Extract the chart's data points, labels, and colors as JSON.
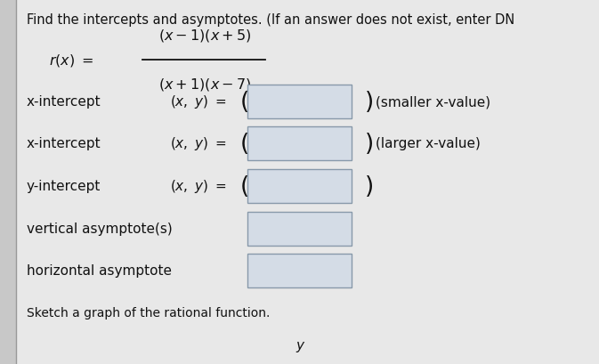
{
  "title": "Find the intercepts and asymptotes. (If an answer does not exist, enter DN",
  "formula_rhs_num": "(x − 1)(x + 5)",
  "formula_rhs_den": "(x + 1)(x − 7)",
  "rows": [
    {
      "label": "x-intercept",
      "show_xy": true,
      "note": "(smaller x-value)"
    },
    {
      "label": "x-intercept",
      "show_xy": true,
      "note": "(larger x-value)"
    },
    {
      "label": "y-intercept",
      "show_xy": true,
      "note": ""
    },
    {
      "label": "vertical asymptote(s)",
      "show_xy": false,
      "note": ""
    },
    {
      "label": "horizontal asymptote",
      "show_xy": false,
      "note": ""
    }
  ],
  "sketch_label": "Sketch a graph of the rational function.",
  "y_label": "y",
  "bg_color": "#c8c8c8",
  "panel_color": "#e8e8e8",
  "box_fill": "#d4dce6",
  "box_edge": "#8899aa",
  "text_color": "#111111",
  "left_border_color": "#aaaaaa",
  "title_fs": 10.5,
  "formula_fs": 11.5,
  "row_fs": 11,
  "sketch_fs": 10
}
